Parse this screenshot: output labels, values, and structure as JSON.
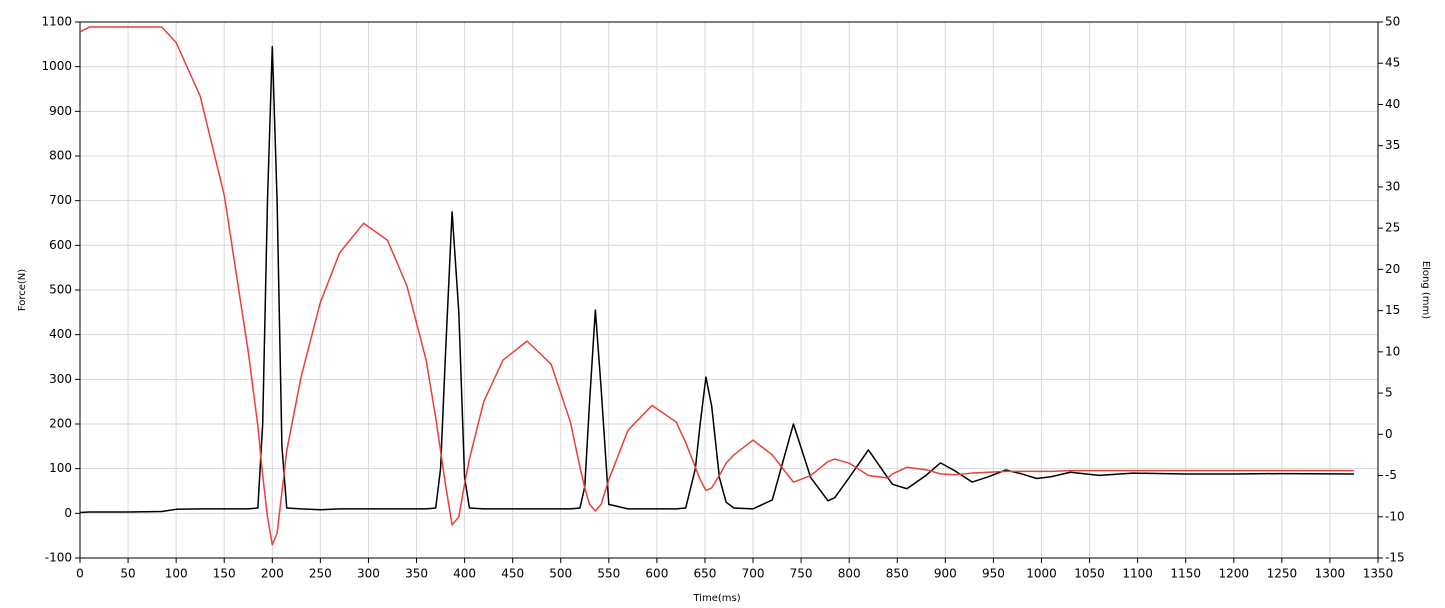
{
  "chart_data": {
    "type": "line",
    "xlabel": "Time(ms)",
    "ylabel": "Force(N)",
    "y2label": "Elong (mm)",
    "x": [
      0,
      10,
      50,
      85,
      100,
      125,
      150,
      175,
      185,
      190,
      195,
      200,
      205,
      210,
      215,
      230,
      250,
      270,
      295,
      320,
      340,
      360,
      370,
      375,
      380,
      387,
      394,
      400,
      405,
      420,
      440,
      465,
      490,
      510,
      520,
      525,
      530,
      536,
      542,
      550,
      570,
      595,
      620,
      630,
      640,
      645,
      651,
      657,
      665,
      672,
      680,
      700,
      720,
      742,
      760,
      778,
      785,
      800,
      820,
      840,
      845,
      860,
      880,
      895,
      910,
      928,
      945,
      963,
      980,
      995,
      1010,
      1030,
      1060,
      1095,
      1150,
      1200,
      1250,
      1325
    ],
    "series": [
      {
        "color": "#000000",
        "axis": "y",
        "values": [
          2,
          3,
          3,
          4,
          9,
          10,
          10,
          10,
          12,
          200,
          700,
          1045,
          700,
          150,
          12,
          10,
          8,
          10,
          10,
          10,
          10,
          10,
          12,
          100,
          350,
          675,
          450,
          80,
          12,
          10,
          10,
          10,
          10,
          10,
          12,
          60,
          250,
          455,
          280,
          20,
          10,
          10,
          10,
          12,
          100,
          200,
          305,
          240,
          80,
          25,
          12,
          10,
          30,
          200,
          80,
          28,
          35,
          80,
          142,
          80,
          65,
          55,
          85,
          113,
          95,
          70,
          82,
          97,
          88,
          78,
          82,
          92,
          85,
          90,
          88,
          88,
          89,
          88
        ]
      },
      {
        "color": "#e8413c",
        "axis": "y2",
        "values": [
          48.8,
          49.4,
          49.4,
          49.4,
          47.5,
          41,
          29,
          10,
          1,
          -5,
          -10,
          -13.4,
          -12,
          -7,
          -2,
          7,
          16,
          22,
          25.6,
          23.5,
          18,
          9,
          2,
          -2,
          -6,
          -11,
          -10,
          -6,
          -3,
          4,
          9,
          11.3,
          8.5,
          1.5,
          -4,
          -6.5,
          -8.5,
          -9.3,
          -8.5,
          -5.5,
          0.5,
          3.5,
          1.5,
          -1,
          -4,
          -5.5,
          -6.8,
          -6.5,
          -5,
          -3.5,
          -2.5,
          -0.7,
          -2.5,
          -5.8,
          -5,
          -3.3,
          -3,
          -3.5,
          -5,
          -5.3,
          -4.8,
          -4,
          -4.3,
          -4.8,
          -4.9,
          -4.7,
          -4.6,
          -4.5,
          -4.5,
          -4.5,
          -4.5,
          -4.4,
          -4.4,
          -4.4,
          -4.4,
          -4.4,
          -4.4,
          -4.4
        ]
      }
    ],
    "xlim": [
      0,
      1350
    ],
    "xticks": [
      0,
      50,
      100,
      150,
      200,
      250,
      300,
      350,
      400,
      450,
      500,
      550,
      600,
      650,
      700,
      750,
      800,
      850,
      900,
      950,
      1000,
      1050,
      1100,
      1150,
      1200,
      1250,
      1300,
      1350
    ],
    "ylim": [
      -100,
      1100
    ],
    "yticks": [
      -100,
      0,
      100,
      200,
      300,
      400,
      500,
      600,
      700,
      800,
      900,
      1000,
      1100
    ],
    "y2lim": [
      -15,
      50
    ],
    "y2ticks": [
      -15,
      -10,
      -5,
      0,
      5,
      10,
      15,
      20,
      25,
      30,
      35,
      40,
      45,
      50
    ],
    "grid": true
  }
}
